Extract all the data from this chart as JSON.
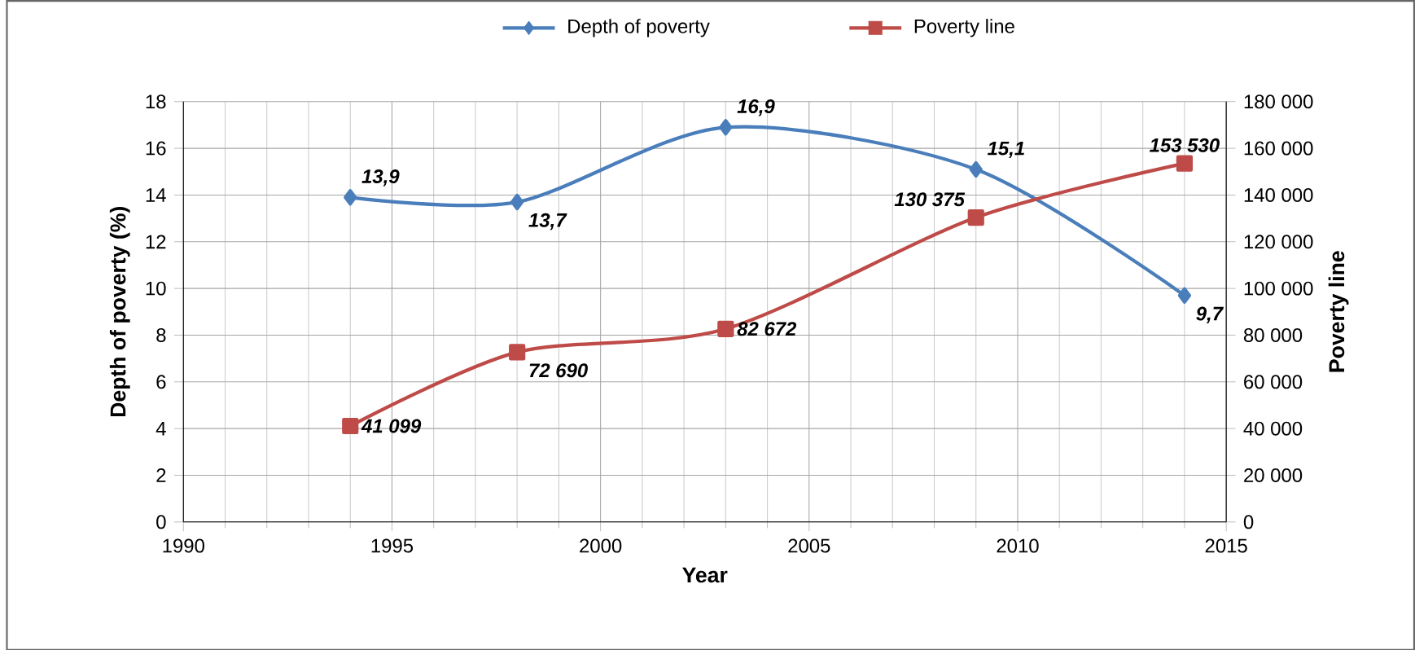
{
  "chart_data": {
    "type": "line",
    "xlabel": "Year",
    "ylabel": "Depth of poverty (%)",
    "y2label": "Poverty line",
    "x": [
      1994,
      1998,
      2003,
      2009,
      2014
    ],
    "series": [
      {
        "name": "Depth of poverty",
        "color": "#4a7ebb",
        "marker": "diamond",
        "values": [
          13.9,
          13.7,
          16.9,
          15.1,
          9.7
        ],
        "value_labels": [
          "13,9",
          "13,7",
          "16,9",
          "15,1",
          "9,7"
        ]
      },
      {
        "name": "Poverty line",
        "color": "#be4b48",
        "marker": "square",
        "axis": "y2",
        "values": [
          41099,
          72690,
          82672,
          130375,
          153530
        ],
        "value_labels": [
          "41 099",
          "72 690",
          "82 672",
          "130 375",
          "153 530"
        ]
      }
    ],
    "xlim": [
      1990,
      2015
    ],
    "xticks": [
      1990,
      1995,
      2000,
      2005,
      2010,
      2015
    ],
    "ylim": [
      0,
      18
    ],
    "yticks": [
      0,
      2,
      4,
      6,
      8,
      10,
      12,
      14,
      16,
      18
    ],
    "y2lim": [
      0,
      180000
    ],
    "y2ticks": [
      0,
      {
        "value": 20000,
        "label": "20 000"
      },
      {
        "value": 40000,
        "label": "40 000"
      },
      {
        "value": 60000,
        "label": "60 000"
      },
      {
        "value": 80000,
        "label": "80 000"
      },
      {
        "value": 100000,
        "label": "100 000"
      },
      {
        "value": 120000,
        "label": "120 000"
      },
      {
        "value": 140000,
        "label": "140 000"
      },
      {
        "value": 160000,
        "label": "160 000"
      },
      {
        "value": 180000,
        "label": "180 000"
      }
    ],
    "grid": true,
    "legend": "top",
    "line_style": "solid"
  }
}
